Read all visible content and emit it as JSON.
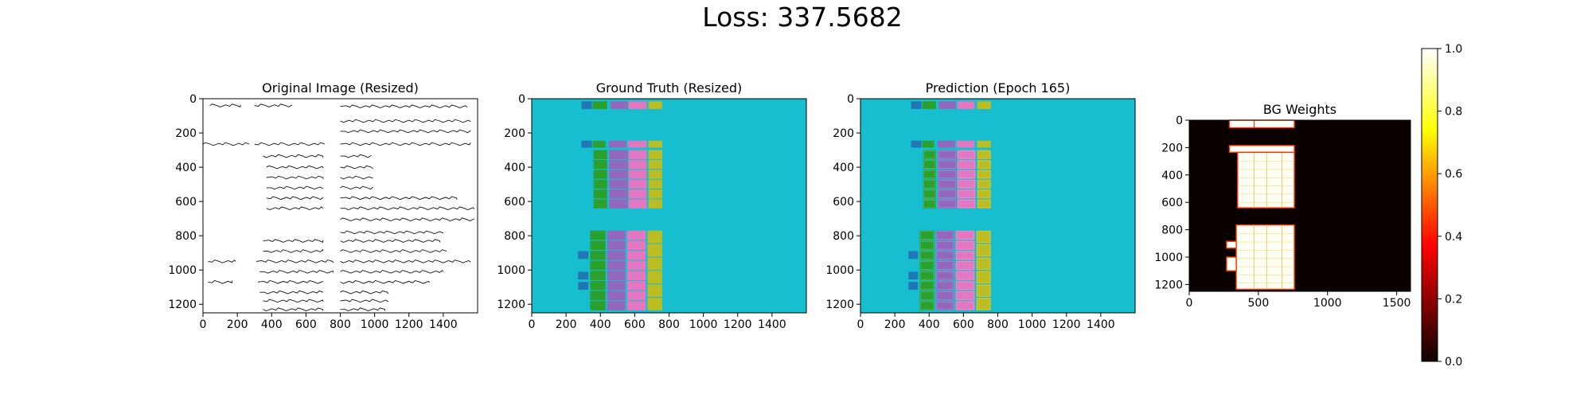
{
  "figure": {
    "suptitle": "Loss: 337.5682"
  },
  "chart_data": [
    {
      "type": "heatmap",
      "title": "Original Image (Resized)",
      "xlabel": "",
      "ylabel": "",
      "xlim": [
        0,
        1600
      ],
      "ylim": [
        1250,
        0
      ],
      "x_ticks": [
        0,
        200,
        400,
        600,
        800,
        1000,
        1200,
        1400
      ],
      "y_ticks": [
        0,
        200,
        400,
        600,
        800,
        1000,
        1200
      ],
      "content": "handwritten ledger document image",
      "ink_lines": [
        {
          "x": [
            40,
            220
          ],
          "y": 40
        },
        {
          "x": [
            300,
            520
          ],
          "y": 40
        },
        {
          "x": [
            800,
            1540
          ],
          "y": 45
        },
        {
          "x": [
            800,
            1560
          ],
          "y": 130
        },
        {
          "x": [
            800,
            1560
          ],
          "y": 190
        },
        {
          "x": [
            0,
            270
          ],
          "y": 265
        },
        {
          "x": [
            300,
            710
          ],
          "y": 265
        },
        {
          "x": [
            800,
            1560
          ],
          "y": 265
        },
        {
          "x": [
            350,
            700
          ],
          "y": 335
        },
        {
          "x": [
            800,
            980
          ],
          "y": 335
        },
        {
          "x": [
            370,
            700
          ],
          "y": 400
        },
        {
          "x": [
            800,
            990
          ],
          "y": 400
        },
        {
          "x": [
            370,
            700
          ],
          "y": 460
        },
        {
          "x": [
            800,
            990
          ],
          "y": 460
        },
        {
          "x": [
            370,
            700
          ],
          "y": 520
        },
        {
          "x": [
            800,
            990
          ],
          "y": 520
        },
        {
          "x": [
            370,
            700
          ],
          "y": 580
        },
        {
          "x": [
            800,
            1480
          ],
          "y": 580
        },
        {
          "x": [
            370,
            700
          ],
          "y": 640
        },
        {
          "x": [
            800,
            1580
          ],
          "y": 640
        },
        {
          "x": [
            800,
            1580
          ],
          "y": 705
        },
        {
          "x": [
            800,
            1400
          ],
          "y": 780
        },
        {
          "x": [
            350,
            700
          ],
          "y": 830
        },
        {
          "x": [
            800,
            1380
          ],
          "y": 830
        },
        {
          "x": [
            350,
            700
          ],
          "y": 890
        },
        {
          "x": [
            800,
            1420
          ],
          "y": 890
        },
        {
          "x": [
            30,
            190
          ],
          "y": 950
        },
        {
          "x": [
            310,
            760
          ],
          "y": 950
        },
        {
          "x": [
            800,
            1560
          ],
          "y": 950
        },
        {
          "x": [
            330,
            760
          ],
          "y": 1010
        },
        {
          "x": [
            800,
            1400
          ],
          "y": 1010
        },
        {
          "x": [
            30,
            170
          ],
          "y": 1070
        },
        {
          "x": [
            320,
            700
          ],
          "y": 1070
        },
        {
          "x": [
            800,
            1320
          ],
          "y": 1070
        },
        {
          "x": [
            330,
            700
          ],
          "y": 1130
        },
        {
          "x": [
            800,
            1080
          ],
          "y": 1130
        },
        {
          "x": [
            350,
            700
          ],
          "y": 1180
        },
        {
          "x": [
            800,
            1080
          ],
          "y": 1180
        },
        {
          "x": [
            350,
            700
          ],
          "y": 1230
        },
        {
          "x": [
            800,
            1060
          ],
          "y": 1230
        }
      ]
    },
    {
      "type": "heatmap",
      "title": "Ground Truth (Resized)",
      "xlabel": "",
      "ylabel": "",
      "xlim": [
        0,
        1600
      ],
      "ylim": [
        1250,
        0
      ],
      "x_ticks": [
        0,
        200,
        400,
        600,
        800,
        1000,
        1200,
        1400
      ],
      "y_ticks": [
        0,
        200,
        400,
        600,
        800,
        1000,
        1200
      ],
      "background": "#17becf",
      "classes": {
        "blue": "#1f77b4",
        "green": "#2ca02c",
        "purple": "#9467bd",
        "pink": "#e377c2",
        "olive": "#bcbd22"
      },
      "cells": [
        {
          "x0": 290,
          "x1": 350,
          "y0": 15,
          "y1": 65,
          "c": "blue"
        },
        {
          "x0": 355,
          "x1": 440,
          "y0": 15,
          "y1": 65,
          "c": "green"
        },
        {
          "x0": 460,
          "x1": 560,
          "y0": 15,
          "y1": 65,
          "c": "purple"
        },
        {
          "x0": 565,
          "x1": 670,
          "y0": 15,
          "y1": 65,
          "c": "pink"
        },
        {
          "x0": 680,
          "x1": 760,
          "y0": 15,
          "y1": 65,
          "c": "olive"
        },
        {
          "x0": 290,
          "x1": 350,
          "y0": 245,
          "y1": 290,
          "c": "blue"
        },
        {
          "x0": 355,
          "x1": 430,
          "y0": 245,
          "y1": 290,
          "c": "green"
        },
        {
          "x0": 450,
          "x1": 550,
          "y0": 245,
          "y1": 290,
          "c": "purple"
        },
        {
          "x0": 560,
          "x1": 670,
          "y0": 245,
          "y1": 290,
          "c": "pink"
        },
        {
          "x0": 680,
          "x1": 760,
          "y0": 245,
          "y1": 290,
          "c": "olive"
        },
        {
          "x0": 360,
          "x1": 440,
          "y0": 300,
          "y1": 645,
          "c": "green",
          "rows": 6
        },
        {
          "x0": 450,
          "x1": 560,
          "y0": 300,
          "y1": 645,
          "c": "purple",
          "rows": 6
        },
        {
          "x0": 565,
          "x1": 670,
          "y0": 300,
          "y1": 645,
          "c": "pink",
          "rows": 6
        },
        {
          "x0": 680,
          "x1": 760,
          "y0": 300,
          "y1": 645,
          "c": "olive",
          "rows": 6
        },
        {
          "x0": 340,
          "x1": 430,
          "y0": 770,
          "y1": 1240,
          "c": "green",
          "rows": 8
        },
        {
          "x0": 440,
          "x1": 545,
          "y0": 770,
          "y1": 1240,
          "c": "purple",
          "rows": 8
        },
        {
          "x0": 555,
          "x1": 665,
          "y0": 770,
          "y1": 1240,
          "c": "pink",
          "rows": 8
        },
        {
          "x0": 675,
          "x1": 760,
          "y0": 770,
          "y1": 1240,
          "c": "olive",
          "rows": 6
        },
        {
          "x0": 270,
          "x1": 330,
          "y0": 890,
          "y1": 940,
          "c": "blue"
        },
        {
          "x0": 270,
          "x1": 330,
          "y0": 1010,
          "y1": 1060,
          "c": "blue"
        },
        {
          "x0": 270,
          "x1": 330,
          "y0": 1070,
          "y1": 1120,
          "c": "blue"
        }
      ]
    },
    {
      "type": "heatmap",
      "title": "Prediction (Epoch 165)",
      "xlabel": "",
      "ylabel": "",
      "xlim": [
        0,
        1600
      ],
      "ylim": [
        1250,
        0
      ],
      "x_ticks": [
        0,
        200,
        400,
        600,
        800,
        1000,
        1200,
        1400
      ],
      "y_ticks": [
        0,
        200,
        400,
        600,
        800,
        1000,
        1200
      ],
      "background": "#17becf",
      "cells": [
        {
          "x0": 295,
          "x1": 355,
          "y0": 15,
          "y1": 65,
          "c": "blue"
        },
        {
          "x0": 360,
          "x1": 440,
          "y0": 15,
          "y1": 65,
          "c": "green"
        },
        {
          "x0": 455,
          "x1": 555,
          "y0": 15,
          "y1": 65,
          "c": "purple"
        },
        {
          "x0": 565,
          "x1": 665,
          "y0": 15,
          "y1": 65,
          "c": "pink"
        },
        {
          "x0": 680,
          "x1": 760,
          "y0": 15,
          "y1": 65,
          "c": "olive"
        },
        {
          "x0": 295,
          "x1": 355,
          "y0": 245,
          "y1": 290,
          "c": "blue"
        },
        {
          "x0": 360,
          "x1": 430,
          "y0": 245,
          "y1": 290,
          "c": "green"
        },
        {
          "x0": 450,
          "x1": 550,
          "y0": 245,
          "y1": 290,
          "c": "purple"
        },
        {
          "x0": 560,
          "x1": 665,
          "y0": 245,
          "y1": 290,
          "c": "pink"
        },
        {
          "x0": 680,
          "x1": 760,
          "y0": 245,
          "y1": 290,
          "c": "olive"
        },
        {
          "x0": 365,
          "x1": 440,
          "y0": 300,
          "y1": 645,
          "c": "green",
          "rows": 6
        },
        {
          "x0": 450,
          "x1": 560,
          "y0": 300,
          "y1": 645,
          "c": "purple",
          "rows": 6
        },
        {
          "x0": 565,
          "x1": 670,
          "y0": 300,
          "y1": 645,
          "c": "pink",
          "rows": 6
        },
        {
          "x0": 680,
          "x1": 760,
          "y0": 300,
          "y1": 645,
          "c": "olive",
          "rows": 6
        },
        {
          "x0": 345,
          "x1": 430,
          "y0": 770,
          "y1": 1240,
          "c": "green",
          "rows": 8
        },
        {
          "x0": 440,
          "x1": 545,
          "y0": 770,
          "y1": 1240,
          "c": "purple",
          "rows": 8
        },
        {
          "x0": 555,
          "x1": 665,
          "y0": 770,
          "y1": 1240,
          "c": "pink",
          "rows": 8
        },
        {
          "x0": 675,
          "x1": 760,
          "y0": 770,
          "y1": 1240,
          "c": "olive",
          "rows": 6
        },
        {
          "x0": 280,
          "x1": 335,
          "y0": 890,
          "y1": 940,
          "c": "blue"
        },
        {
          "x0": 280,
          "x1": 335,
          "y0": 1010,
          "y1": 1060,
          "c": "blue"
        },
        {
          "x0": 280,
          "x1": 335,
          "y0": 1070,
          "y1": 1120,
          "c": "blue"
        }
      ]
    },
    {
      "type": "heatmap",
      "title": "BG Weights",
      "xlabel": "",
      "ylabel": "",
      "xlim": [
        0,
        1600
      ],
      "ylim": [
        1250,
        0
      ],
      "x_ticks": [
        0,
        500,
        1000,
        1500
      ],
      "y_ticks": [
        0,
        200,
        400,
        600,
        800,
        1000,
        1200
      ],
      "colormap": "hot",
      "background_value": 0.0,
      "regions_value": 1.0,
      "regions": [
        {
          "x0": 290,
          "x1": 760,
          "y0": 0,
          "y1": 55
        },
        {
          "x0": 290,
          "x1": 760,
          "y0": 185,
          "y1": 235
        },
        {
          "x0": 350,
          "x1": 760,
          "y0": 235,
          "y1": 640
        },
        {
          "x0": 340,
          "x1": 760,
          "y0": 765,
          "y1": 1235
        },
        {
          "x0": 270,
          "x1": 340,
          "y0": 885,
          "y1": 935
        },
        {
          "x0": 270,
          "x1": 340,
          "y0": 1000,
          "y1": 1100
        }
      ],
      "colorbar": {
        "range": [
          0.0,
          1.0
        ],
        "ticks": [
          "0.0",
          "0.2",
          "0.4",
          "0.6",
          "0.8",
          "1.0"
        ]
      }
    }
  ]
}
